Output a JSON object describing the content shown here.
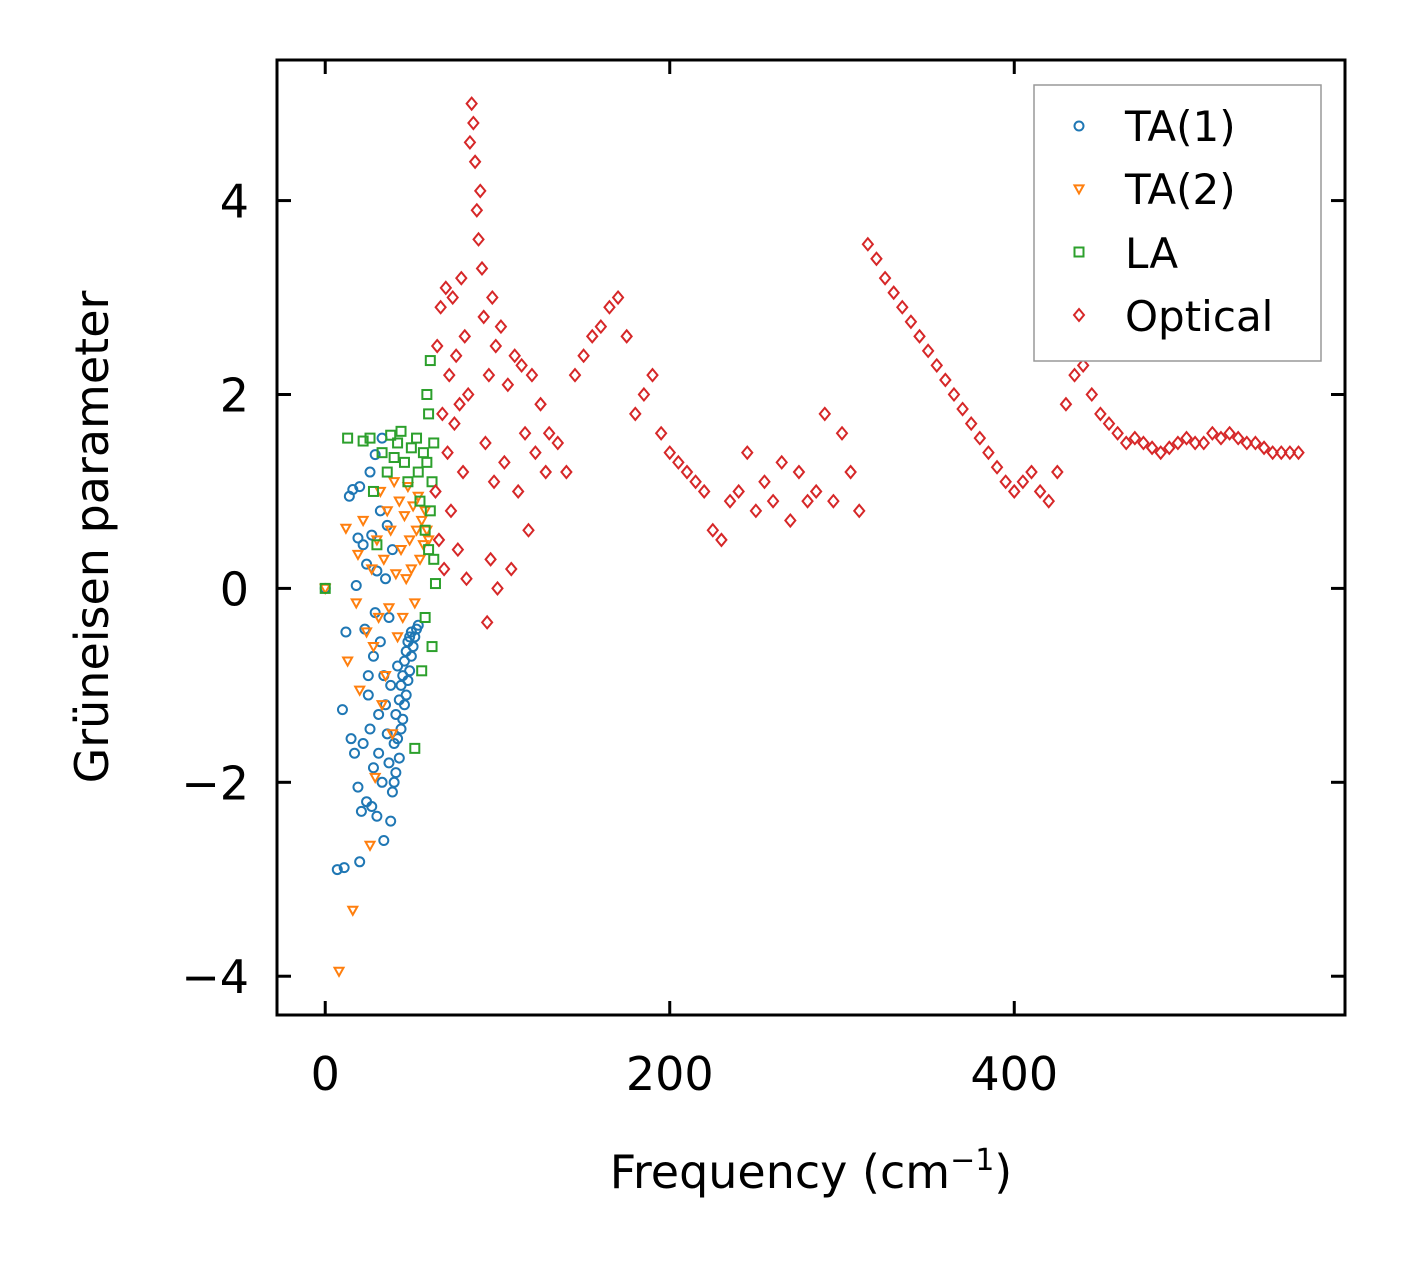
{
  "chart_data": {
    "type": "scatter",
    "title": "",
    "xlabel": "Frequency (cm",
    "xlabel_sup": "−1",
    "xlabel_close": ")",
    "ylabel": "Grüneisen parameter",
    "xlim": [
      -28,
      592
    ],
    "ylim": [
      -4.4,
      5.45
    ],
    "xticks": [
      0,
      200,
      400
    ],
    "xtick_labels": [
      "0",
      "200",
      "400"
    ],
    "yticks": [
      -4,
      -2,
      0,
      2,
      4
    ],
    "ytick_labels": [
      "−4",
      "−2",
      "0",
      "2",
      "4"
    ],
    "legend_position": "top-right",
    "grid": false,
    "series": [
      {
        "name": "TA(1)",
        "marker": "circle",
        "color": "#1f77b4",
        "points": [
          [
            0,
            0
          ],
          [
            7,
            -2.9
          ],
          [
            10,
            -1.25
          ],
          [
            11,
            -2.88
          ],
          [
            12,
            -0.45
          ],
          [
            14,
            0.95
          ],
          [
            15,
            -1.55
          ],
          [
            17,
            -1.7
          ],
          [
            16,
            1.02
          ],
          [
            18,
            0.03
          ],
          [
            19,
            -2.05
          ],
          [
            19,
            0.52
          ],
          [
            20,
            -2.82
          ],
          [
            20,
            1.05
          ],
          [
            21,
            -2.3
          ],
          [
            22,
            0.45
          ],
          [
            22,
            -1.6
          ],
          [
            23,
            -0.42
          ],
          [
            24,
            -2.2
          ],
          [
            24,
            0.25
          ],
          [
            25,
            -0.9
          ],
          [
            25,
            -1.1
          ],
          [
            26,
            1.2
          ],
          [
            26,
            -1.45
          ],
          [
            27,
            -2.25
          ],
          [
            27,
            0.55
          ],
          [
            28,
            -0.7
          ],
          [
            28,
            -1.85
          ],
          [
            29,
            1.38
          ],
          [
            29,
            -0.25
          ],
          [
            30,
            -2.35
          ],
          [
            30,
            0.18
          ],
          [
            31,
            -1.3
          ],
          [
            31,
            -1.7
          ],
          [
            32,
            -0.55
          ],
          [
            32,
            0.8
          ],
          [
            33,
            -2.0
          ],
          [
            33,
            1.55
          ],
          [
            34,
            -0.9
          ],
          [
            34,
            -2.6
          ],
          [
            35,
            -1.2
          ],
          [
            35,
            0.1
          ],
          [
            36,
            -1.5
          ],
          [
            36,
            0.65
          ],
          [
            37,
            -1.8
          ],
          [
            37,
            -0.3
          ],
          [
            38,
            -2.4
          ],
          [
            38,
            -1.0
          ],
          [
            39,
            -2.1
          ],
          [
            39,
            0.4
          ],
          [
            40,
            -1.6
          ],
          [
            40,
            -2.0
          ],
          [
            41,
            -1.3
          ],
          [
            41,
            -1.9
          ],
          [
            42,
            -0.8
          ],
          [
            42,
            -1.55
          ],
          [
            43,
            -1.15
          ],
          [
            43,
            -1.75
          ],
          [
            44,
            -1.0
          ],
          [
            44,
            -1.45
          ],
          [
            45,
            -0.9
          ],
          [
            45,
            -1.35
          ],
          [
            46,
            -1.2
          ],
          [
            46,
            -0.75
          ],
          [
            47,
            -1.1
          ],
          [
            47,
            -0.65
          ],
          [
            48,
            -0.95
          ],
          [
            48,
            -0.55
          ],
          [
            49,
            -0.85
          ],
          [
            49,
            -0.5
          ],
          [
            50,
            -0.7
          ],
          [
            50,
            -0.45
          ],
          [
            51,
            -0.6
          ],
          [
            52,
            -0.5
          ],
          [
            53,
            -0.42
          ],
          [
            54,
            -0.38
          ]
        ]
      },
      {
        "name": "TA(2)",
        "marker": "triangle",
        "color": "#ff7f0e",
        "points": [
          [
            0,
            0
          ],
          [
            8,
            -3.95
          ],
          [
            12,
            0.62
          ],
          [
            13,
            -0.75
          ],
          [
            16,
            -3.32
          ],
          [
            18,
            -0.15
          ],
          [
            19,
            0.35
          ],
          [
            20,
            -1.05
          ],
          [
            22,
            0.7
          ],
          [
            24,
            -0.45
          ],
          [
            26,
            -2.65
          ],
          [
            27,
            0.2
          ],
          [
            28,
            -0.6
          ],
          [
            29,
            -1.95
          ],
          [
            30,
            0.5
          ],
          [
            31,
            -0.3
          ],
          [
            32,
            1.0
          ],
          [
            33,
            -1.2
          ],
          [
            34,
            0.3
          ],
          [
            35,
            -0.9
          ],
          [
            36,
            0.8
          ],
          [
            37,
            -0.2
          ],
          [
            38,
            0.6
          ],
          [
            39,
            -1.5
          ],
          [
            40,
            1.1
          ],
          [
            41,
            0.15
          ],
          [
            42,
            -0.5
          ],
          [
            43,
            0.9
          ],
          [
            44,
            0.4
          ],
          [
            45,
            -0.3
          ],
          [
            46,
            0.75
          ],
          [
            47,
            0.1
          ],
          [
            48,
            1.05
          ],
          [
            49,
            0.5
          ],
          [
            50,
            0.2
          ],
          [
            51,
            0.85
          ],
          [
            52,
            -0.15
          ],
          [
            53,
            0.6
          ],
          [
            54,
            0.95
          ],
          [
            55,
            0.3
          ],
          [
            56,
            0.7
          ],
          [
            57,
            0.45
          ],
          [
            58,
            0.8
          ],
          [
            59,
            0.6
          ],
          [
            60,
            0.5
          ]
        ]
      },
      {
        "name": "LA",
        "marker": "square",
        "color": "#2ca02c",
        "points": [
          [
            0,
            0
          ],
          [
            13,
            1.55
          ],
          [
            22,
            1.52
          ],
          [
            26,
            1.55
          ],
          [
            28,
            1.0
          ],
          [
            30,
            0.45
          ],
          [
            33,
            1.4
          ],
          [
            36,
            1.2
          ],
          [
            38,
            1.58
          ],
          [
            40,
            1.35
          ],
          [
            42,
            1.5
          ],
          [
            44,
            1.62
          ],
          [
            46,
            1.3
          ],
          [
            48,
            1.1
          ],
          [
            50,
            1.45
          ],
          [
            52,
            -1.65
          ],
          [
            53,
            1.55
          ],
          [
            54,
            1.2
          ],
          [
            55,
            0.9
          ],
          [
            56,
            -0.85
          ],
          [
            57,
            1.4
          ],
          [
            58,
            0.6
          ],
          [
            59,
            2.0
          ],
          [
            60,
            1.8
          ],
          [
            61,
            2.35
          ],
          [
            62,
            -0.6
          ],
          [
            63,
            0.3
          ],
          [
            64,
            0.05
          ],
          [
            63,
            1.5
          ],
          [
            62,
            1.1
          ],
          [
            61,
            0.8
          ],
          [
            60,
            0.4
          ],
          [
            59,
            1.3
          ],
          [
            58,
            -0.3
          ]
        ]
      },
      {
        "name": "Optical",
        "marker": "diamond",
        "color": "#d62728",
        "points": [
          [
            64,
            1.0
          ],
          [
            65,
            2.5
          ],
          [
            66,
            0.5
          ],
          [
            67,
            2.9
          ],
          [
            68,
            1.8
          ],
          [
            69,
            0.2
          ],
          [
            70,
            3.1
          ],
          [
            71,
            1.4
          ],
          [
            72,
            2.2
          ],
          [
            73,
            0.8
          ],
          [
            74,
            3.0
          ],
          [
            75,
            1.7
          ],
          [
            76,
            2.4
          ],
          [
            77,
            0.4
          ],
          [
            78,
            1.9
          ],
          [
            79,
            3.2
          ],
          [
            80,
            1.2
          ],
          [
            81,
            2.6
          ],
          [
            82,
            0.1
          ],
          [
            83,
            2.0
          ],
          [
            84,
            4.6
          ],
          [
            85,
            5.0
          ],
          [
            86,
            4.8
          ],
          [
            87,
            4.4
          ],
          [
            88,
            3.9
          ],
          [
            89,
            3.6
          ],
          [
            90,
            4.1
          ],
          [
            91,
            3.3
          ],
          [
            92,
            2.8
          ],
          [
            93,
            1.5
          ],
          [
            94,
            -0.35
          ],
          [
            95,
            2.2
          ],
          [
            96,
            0.3
          ],
          [
            97,
            3.0
          ],
          [
            98,
            1.1
          ],
          [
            99,
            2.5
          ],
          [
            100,
            0.0
          ],
          [
            102,
            2.7
          ],
          [
            104,
            1.3
          ],
          [
            106,
            2.1
          ],
          [
            108,
            0.2
          ],
          [
            110,
            2.4
          ],
          [
            112,
            1.0
          ],
          [
            114,
            2.3
          ],
          [
            116,
            1.6
          ],
          [
            118,
            0.6
          ],
          [
            120,
            2.2
          ],
          [
            122,
            1.4
          ],
          [
            125,
            1.9
          ],
          [
            128,
            1.2
          ],
          [
            130,
            1.6
          ],
          [
            135,
            1.5
          ],
          [
            140,
            1.2
          ],
          [
            145,
            2.2
          ],
          [
            150,
            2.4
          ],
          [
            155,
            2.6
          ],
          [
            160,
            2.7
          ],
          [
            165,
            2.9
          ],
          [
            170,
            3.0
          ],
          [
            175,
            2.6
          ],
          [
            180,
            1.8
          ],
          [
            185,
            2.0
          ],
          [
            190,
            2.2
          ],
          [
            195,
            1.6
          ],
          [
            200,
            1.4
          ],
          [
            205,
            1.3
          ],
          [
            210,
            1.2
          ],
          [
            215,
            1.1
          ],
          [
            220,
            1.0
          ],
          [
            225,
            0.6
          ],
          [
            230,
            0.5
          ],
          [
            235,
            0.9
          ],
          [
            240,
            1.0
          ],
          [
            245,
            1.4
          ],
          [
            250,
            0.8
          ],
          [
            255,
            1.1
          ],
          [
            260,
            0.9
          ],
          [
            265,
            1.3
          ],
          [
            270,
            0.7
          ],
          [
            275,
            1.2
          ],
          [
            280,
            0.9
          ],
          [
            285,
            1.0
          ],
          [
            290,
            1.8
          ],
          [
            295,
            0.9
          ],
          [
            300,
            1.6
          ],
          [
            305,
            1.2
          ],
          [
            310,
            0.8
          ],
          [
            315,
            3.55
          ],
          [
            320,
            3.4
          ],
          [
            325,
            3.2
          ],
          [
            330,
            3.05
          ],
          [
            335,
            2.9
          ],
          [
            340,
            2.75
          ],
          [
            345,
            2.6
          ],
          [
            350,
            2.45
          ],
          [
            355,
            2.3
          ],
          [
            360,
            2.15
          ],
          [
            365,
            2.0
          ],
          [
            370,
            1.85
          ],
          [
            375,
            1.7
          ],
          [
            380,
            1.55
          ],
          [
            385,
            1.4
          ],
          [
            390,
            1.25
          ],
          [
            395,
            1.1
          ],
          [
            400,
            1.0
          ],
          [
            405,
            1.1
          ],
          [
            410,
            1.2
          ],
          [
            415,
            1.0
          ],
          [
            420,
            0.9
          ],
          [
            425,
            1.2
          ],
          [
            430,
            1.9
          ],
          [
            435,
            2.2
          ],
          [
            440,
            2.3
          ],
          [
            445,
            2.0
          ],
          [
            450,
            1.8
          ],
          [
            455,
            1.7
          ],
          [
            460,
            1.6
          ],
          [
            465,
            1.5
          ],
          [
            470,
            1.55
          ],
          [
            475,
            1.5
          ],
          [
            480,
            1.45
          ],
          [
            485,
            1.4
          ],
          [
            490,
            1.45
          ],
          [
            495,
            1.5
          ],
          [
            500,
            1.55
          ],
          [
            505,
            1.5
          ],
          [
            510,
            1.5
          ],
          [
            515,
            1.6
          ],
          [
            520,
            1.55
          ],
          [
            525,
            1.6
          ],
          [
            530,
            1.55
          ],
          [
            535,
            1.5
          ],
          [
            540,
            1.5
          ],
          [
            545,
            1.45
          ],
          [
            550,
            1.4
          ],
          [
            555,
            1.4
          ],
          [
            560,
            1.4
          ],
          [
            565,
            1.4
          ]
        ]
      }
    ]
  }
}
